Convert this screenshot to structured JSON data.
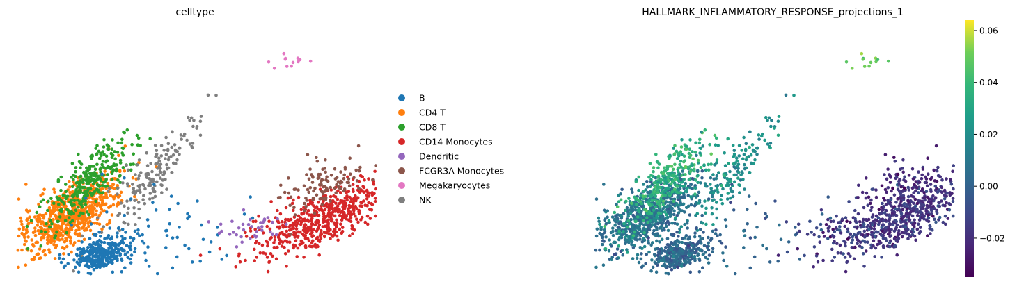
{
  "chart_data": [
    {
      "type": "scatter",
      "title": "celltype",
      "legend_position": "right",
      "legend": [
        {
          "name": "B",
          "color": "#1f77b4"
        },
        {
          "name": "CD4 T",
          "color": "#ff7f0e"
        },
        {
          "name": "CD8 T",
          "color": "#2ca02c"
        },
        {
          "name": "CD14 Monocytes",
          "color": "#d62728"
        },
        {
          "name": "Dendritic",
          "color": "#9467bd"
        },
        {
          "name": "FCGR3A Monocytes",
          "color": "#8c564b"
        },
        {
          "name": "Megakaryocytes",
          "color": "#e377c2"
        },
        {
          "name": "NK",
          "color": "#7f7f7f"
        }
      ],
      "clusters": [
        {
          "category": "CD4 T",
          "count": 700,
          "center": [
            80,
            75
          ],
          "spread": [
            45,
            18
          ],
          "angle": -35
        },
        {
          "category": "CD8 T",
          "count": 300,
          "center": [
            105,
            120
          ],
          "spread": [
            42,
            15
          ],
          "angle": -45
        },
        {
          "category": "NK",
          "count": 170,
          "center": [
            205,
            140
          ],
          "spread": [
            50,
            12
          ],
          "angle": -50
        },
        {
          "category": "B",
          "count": 320,
          "center": [
            125,
            20
          ],
          "spread": [
            22,
            12
          ],
          "angle": -20
        },
        {
          "category": "B",
          "count": 60,
          "center": [
            200,
            60
          ],
          "spread": [
            50,
            40
          ],
          "angle": 0
        },
        {
          "category": "CD14 Monocytes",
          "count": 550,
          "center": [
            445,
            70
          ],
          "spread": [
            55,
            18
          ],
          "angle": -25
        },
        {
          "category": "FCGR3A Monocytes",
          "count": 110,
          "center": [
            440,
            118
          ],
          "spread": [
            30,
            16
          ],
          "angle": -15
        },
        {
          "category": "Dendritic",
          "count": 40,
          "center": [
            340,
            55
          ],
          "spread": [
            30,
            12
          ],
          "angle": 0
        },
        {
          "category": "Megakaryocytes",
          "count": 12,
          "center": [
            400,
            295
          ],
          "spread": [
            15,
            6
          ],
          "angle": 0
        }
      ]
    },
    {
      "type": "scatter",
      "title": "HALLMARK_INFLAMMATORY_RESPONSE_projections_1",
      "colorbar": {
        "colormap": "viridis",
        "min": -0.035,
        "max": 0.064,
        "ticks": [
          -0.02,
          0.0,
          0.02,
          0.04,
          0.06
        ],
        "tick_labels": [
          "−0.02",
          "0.00",
          "0.02",
          "0.04",
          "0.06"
        ]
      },
      "cluster_values": {
        "B": 0.002,
        "CD4 T": 0.008,
        "CD8 T": 0.035,
        "NK": 0.022,
        "CD14 Monocytes": -0.018,
        "FCGR3A Monocytes": -0.02,
        "Dendritic": -0.012,
        "Megakaryocytes": 0.048
      }
    }
  ]
}
